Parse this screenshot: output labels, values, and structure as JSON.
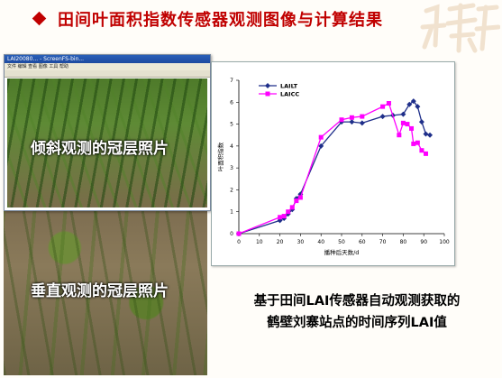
{
  "slide": {
    "title": "田间叶面积指数传感器观测图像与计算结果",
    "title_color": "#c00000",
    "watermark_text": "鹤壁"
  },
  "photos": {
    "window_title": "LAI20080... - ScreenFS-bin...",
    "window_menu": "文件 编辑 查看 图像 工具 帮助",
    "tilted_label": "倾斜观测的冠层照片",
    "vertical_label": "垂直观测的冠层照片"
  },
  "caption": {
    "line1": "基于田间LAI传感器自动观测获取的",
    "line2": "鹤壁刘寨站点的时间序列LAI值"
  },
  "chart_data": {
    "type": "line",
    "xlabel": "播种后天数/d",
    "ylabel": "叶面积指数",
    "xlim": [
      0,
      100
    ],
    "ylim": [
      0,
      7
    ],
    "xticks": [
      0,
      10,
      20,
      30,
      40,
      50,
      60,
      70,
      80,
      90,
      100
    ],
    "yticks": [
      0,
      1,
      2,
      3,
      4,
      5,
      6,
      7
    ],
    "legend_position": "top-left",
    "series": [
      {
        "name": "LAILT",
        "color": "#1f2f8a",
        "marker": "diamond",
        "points": [
          [
            0,
            0
          ],
          [
            20,
            0.6
          ],
          [
            22,
            0.7
          ],
          [
            24,
            0.9
          ],
          [
            26,
            1.1
          ],
          [
            28,
            1.6
          ],
          [
            30,
            1.8
          ],
          [
            40,
            4.0
          ],
          [
            50,
            5.1
          ],
          [
            55,
            5.1
          ],
          [
            60,
            5.05
          ],
          [
            70,
            5.35
          ],
          [
            75,
            5.4
          ],
          [
            80,
            5.45
          ],
          [
            83,
            5.9
          ],
          [
            85,
            6.05
          ],
          [
            87,
            5.8
          ],
          [
            89,
            5.1
          ],
          [
            91,
            4.55
          ],
          [
            93,
            4.5
          ]
        ]
      },
      {
        "name": "LAICC",
        "color": "#ff00ff",
        "marker": "square",
        "points": [
          [
            0,
            0
          ],
          [
            20,
            0.75
          ],
          [
            22,
            0.8
          ],
          [
            24,
            1.0
          ],
          [
            26,
            1.2
          ],
          [
            28,
            1.5
          ],
          [
            30,
            1.65
          ],
          [
            40,
            4.4
          ],
          [
            50,
            5.2
          ],
          [
            55,
            5.3
          ],
          [
            60,
            5.35
          ],
          [
            70,
            5.8
          ],
          [
            73,
            5.95
          ],
          [
            78,
            4.5
          ],
          [
            80,
            5.05
          ],
          [
            82,
            5.0
          ],
          [
            84,
            4.8
          ],
          [
            85,
            4.1
          ],
          [
            87,
            4.15
          ],
          [
            89,
            3.8
          ],
          [
            91,
            3.65
          ]
        ]
      }
    ]
  }
}
